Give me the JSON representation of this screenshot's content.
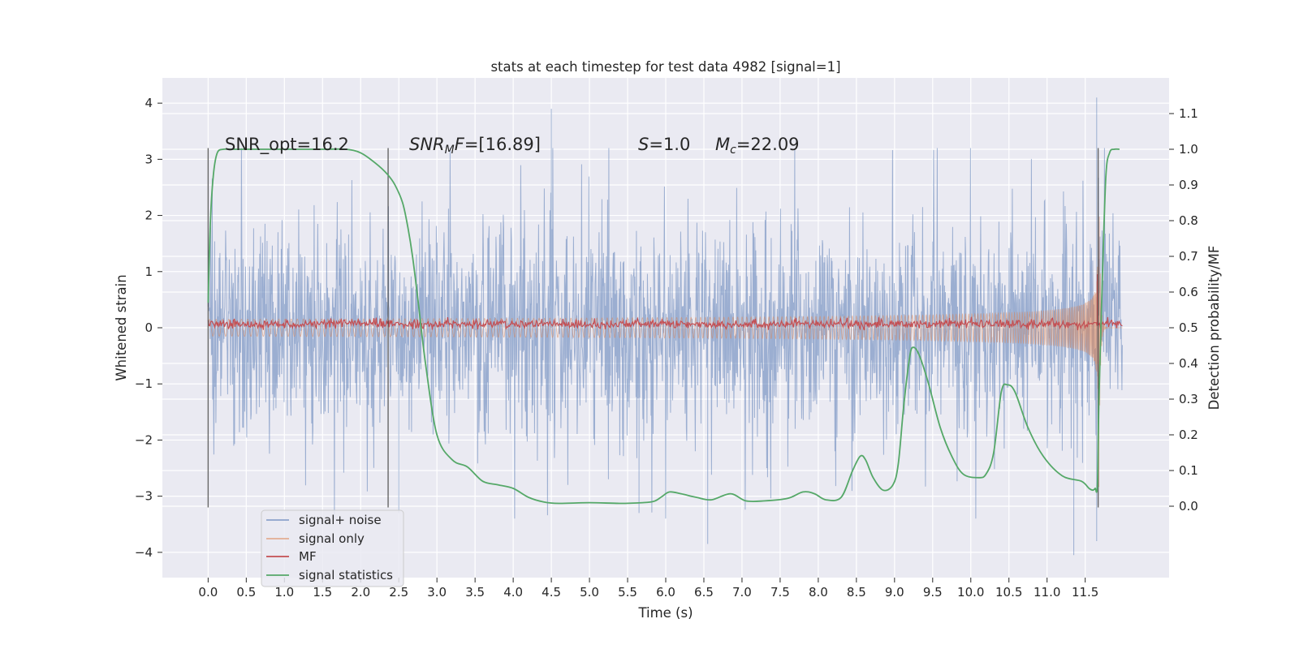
{
  "chart_data": {
    "type": "line",
    "title": "stats at each timestep for test data 4982 [signal=1]",
    "xlabel": "Time (s)",
    "ylabel_left": "Whitened strain",
    "ylabel_right": "Detection probability/MF",
    "xlim": [
      -0.6,
      12.6
    ],
    "ylim_left": [
      -4.45,
      4.45
    ],
    "ylim_right": [
      -0.2,
      1.2
    ],
    "x_ticks": [
      0.0,
      0.5,
      1.0,
      1.5,
      2.0,
      2.5,
      3.0,
      3.5,
      4.0,
      4.5,
      5.0,
      5.5,
      6.0,
      6.5,
      7.0,
      7.5,
      8.0,
      8.5,
      9.0,
      9.5,
      10.0,
      10.5,
      11.0,
      11.5
    ],
    "x_tick_labels": [
      "0.0",
      "0.5",
      "1.0",
      "1.5",
      "2.0",
      "2.5",
      "3.0",
      "3.5",
      "4.0",
      "4.5",
      "5.0",
      "5.5",
      "6.0",
      "6.5",
      "7.0",
      "7.5",
      "8.0",
      "8.5",
      "9.0",
      "9.5",
      "10.0",
      "10.5",
      "11.0",
      "11.5"
    ],
    "y_left_ticks": [
      -4,
      -3,
      -2,
      -1,
      0,
      1,
      2,
      3,
      4
    ],
    "y_left_tick_labels": [
      "−4",
      "−3",
      "−2",
      "−1",
      "0",
      "1",
      "2",
      "3",
      "4"
    ],
    "y_right_ticks": [
      0.0,
      0.1,
      0.2,
      0.3,
      0.4,
      0.5,
      0.6,
      0.7,
      0.8,
      0.9,
      1.0,
      1.1
    ],
    "y_right_tick_labels": [
      "0.0",
      "0.1",
      "0.2",
      "0.3",
      "0.4",
      "0.5",
      "0.6",
      "0.7",
      "0.8",
      "0.9",
      "1.0",
      "1.1"
    ],
    "grid": true,
    "legend_position": "lower-left",
    "series": [
      {
        "name": "signal+ noise",
        "color": "#4c72b0",
        "axis": "left",
        "x_range": [
          0.0,
          11.99
        ],
        "envelope_max": [
          2.6,
          3.2
        ],
        "envelope_min": [
          -2.6,
          -3.4
        ],
        "peaks": [
          [
            4.5,
            3.9
          ],
          [
            11.65,
            4.1
          ],
          [
            11.65,
            -3.8
          ],
          [
            11.35,
            -4.05
          ],
          [
            6.55,
            -3.85
          ],
          [
            5.65,
            -3.3
          ],
          [
            2.5,
            -3.3
          ]
        ]
      },
      {
        "name": "signal only",
        "color": "#dd8452",
        "axis": "left",
        "description": "chirp growing toward merger near 11.68 s",
        "x_range": [
          0.0,
          11.99
        ],
        "peak": [
          11.66,
          3.2
        ]
      },
      {
        "name": "MF",
        "color": "#c44e52",
        "axis": "right",
        "baseline": 0.51,
        "spike": [
          11.66,
          0.65
        ]
      },
      {
        "name": "signal statistics",
        "color": "#55a868",
        "axis": "right",
        "x": [
          0.0,
          0.03,
          0.07,
          0.12,
          0.2,
          0.3,
          0.5,
          1.0,
          1.5,
          1.8,
          2.0,
          2.2,
          2.35,
          2.45,
          2.55,
          2.62,
          2.68,
          2.75,
          2.85,
          3.0,
          3.2,
          3.4,
          3.6,
          3.8,
          4.0,
          4.2,
          4.4,
          4.6,
          5.0,
          5.4,
          5.7,
          5.85,
          5.95,
          6.05,
          6.2,
          6.4,
          6.6,
          6.85,
          7.05,
          7.3,
          7.6,
          7.8,
          7.95,
          8.1,
          8.3,
          8.45,
          8.55,
          8.62,
          8.72,
          8.85,
          8.98,
          9.05,
          9.12,
          9.2,
          9.25,
          9.33,
          9.45,
          9.6,
          9.75,
          9.9,
          10.1,
          10.2,
          10.3,
          10.4,
          10.48,
          10.58,
          10.75,
          10.95,
          11.2,
          11.45,
          11.55,
          11.6,
          11.63,
          11.66,
          11.68,
          11.72,
          11.77,
          11.82,
          11.88,
          11.95
        ],
        "y": [
          0.57,
          0.8,
          0.93,
          0.99,
          1.0,
          1.0,
          1.0,
          1.0,
          1.0,
          1.0,
          0.99,
          0.96,
          0.93,
          0.9,
          0.85,
          0.78,
          0.7,
          0.58,
          0.4,
          0.2,
          0.13,
          0.11,
          0.07,
          0.06,
          0.05,
          0.025,
          0.012,
          0.008,
          0.01,
          0.008,
          0.01,
          0.014,
          0.027,
          0.04,
          0.035,
          0.025,
          0.018,
          0.035,
          0.015,
          0.015,
          0.022,
          0.04,
          0.035,
          0.018,
          0.025,
          0.1,
          0.14,
          0.13,
          0.08,
          0.045,
          0.06,
          0.12,
          0.28,
          0.42,
          0.445,
          0.42,
          0.34,
          0.22,
          0.14,
          0.09,
          0.08,
          0.09,
          0.15,
          0.32,
          0.34,
          0.32,
          0.22,
          0.14,
          0.085,
          0.07,
          0.05,
          0.045,
          0.05,
          0.06,
          0.3,
          0.6,
          0.92,
          0.99,
          1.0,
          1.0
        ]
      }
    ],
    "vertical_lines": [
      0.0,
      2.36,
      11.67
    ],
    "annotations": [
      {
        "text": "SNR_opt=16.2",
        "x": 0.2,
        "y": 3.2
      },
      {
        "text": "SNR_MF=[16.89]",
        "x": 2.6,
        "y": 3.2
      },
      {
        "text": "S=1.0",
        "x": 5.6,
        "y": 3.2
      },
      {
        "text": "M_c=22.09",
        "x": 6.6,
        "y": 3.2
      }
    ]
  }
}
